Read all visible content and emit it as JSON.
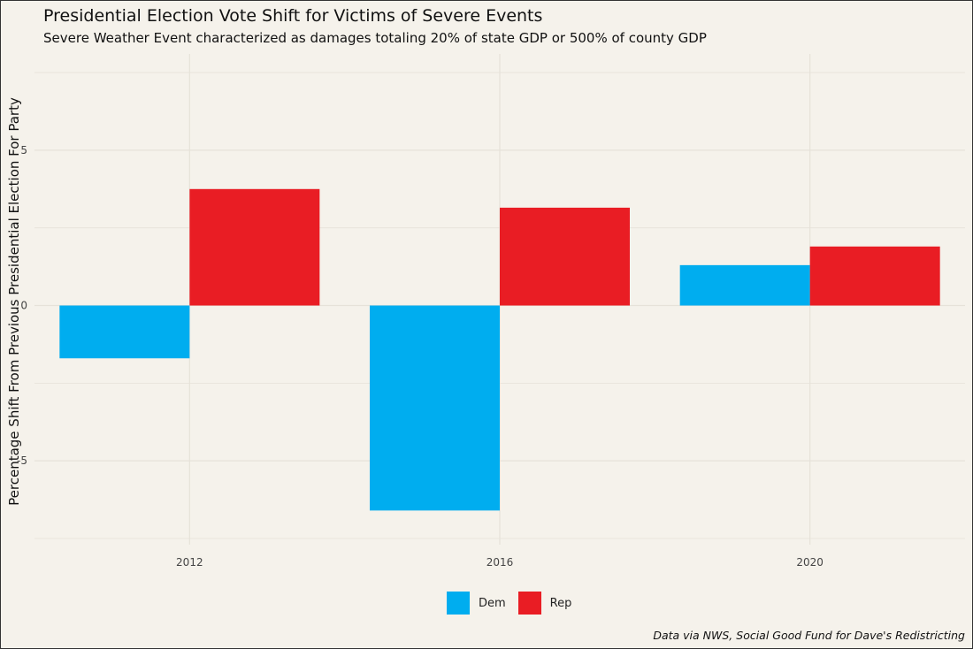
{
  "chart_data": {
    "type": "bar",
    "title": "Presidential Election Vote Shift for Victims of Severe Events",
    "subtitle": "Severe Weather Event characterized as damages totaling 20% of state GDP or 500% of county GDP",
    "xlabel": "",
    "ylabel": "Percentage Shift From Previous Presidential Election For Party",
    "categories": [
      "2012",
      "2016",
      "2020"
    ],
    "series": [
      {
        "name": "Dem",
        "color": "#00adef",
        "values": [
          -1.7,
          -6.6,
          1.3
        ]
      },
      {
        "name": "Rep",
        "color": "#e91d24",
        "values": [
          3.75,
          3.15,
          1.9
        ]
      }
    ],
    "ylim": [
      -7.7,
      8.1
    ],
    "yticks": [
      -5,
      0,
      5
    ],
    "ytick_labels": [
      "-5",
      "0",
      "5"
    ],
    "grid": true,
    "legend_position": "bottom",
    "caption": "Data via NWS, Social Good Fund for Dave's Redistricting"
  }
}
